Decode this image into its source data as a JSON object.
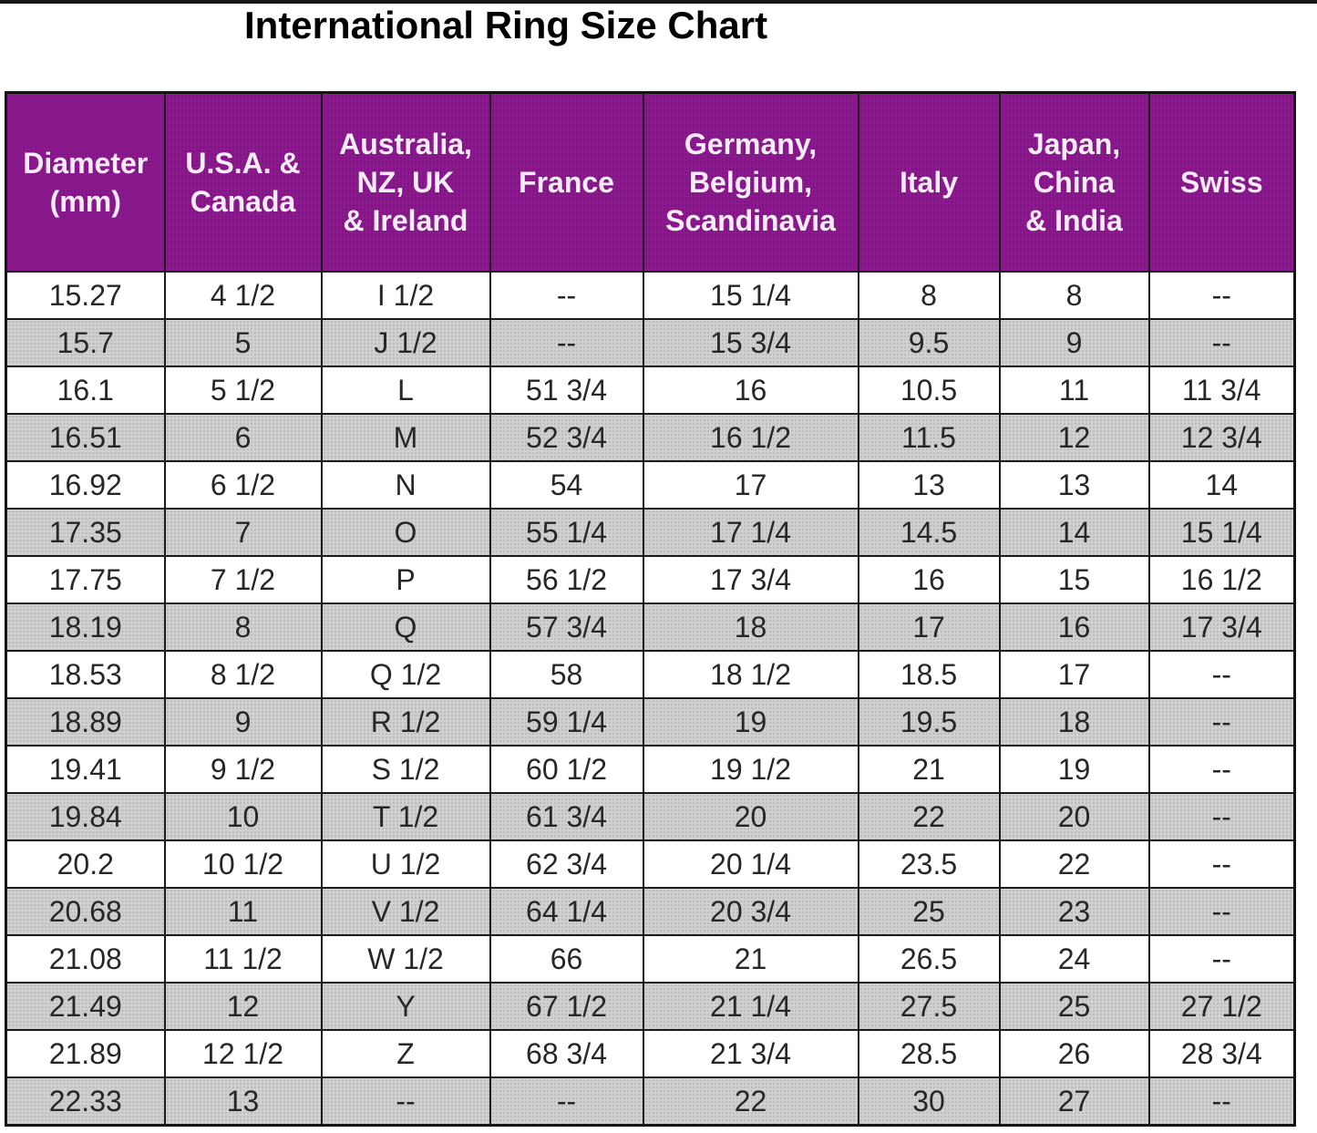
{
  "title": "International Ring Size Chart",
  "colors": {
    "header_bg": "#8B1A8F",
    "header_text": "#F7ECF7",
    "row_bg": "#FFFFFF",
    "row_alt_bg": "#CACACA",
    "border": "#1B1B1B",
    "title_text": "#000000"
  },
  "table": {
    "headers": [
      "Diameter\n(mm)",
      "U.S.A. &\nCanada",
      "Australia,\nNZ, UK\n& Ireland",
      "France",
      "Germany,\nBelgium,\nScandinavia",
      "Italy",
      "Japan,\nChina\n& India",
      "Swiss"
    ]
  },
  "chart_data": {
    "type": "table",
    "title": "International Ring Size Chart",
    "columns": [
      "Diameter (mm)",
      "U.S.A. & Canada",
      "Australia, NZ, UK & Ireland",
      "France",
      "Germany, Belgium, Scandinavia",
      "Italy",
      "Japan, China & India",
      "Swiss"
    ],
    "rows": [
      [
        "15.27",
        "4 1/2",
        "I 1/2",
        "--",
        "15 1/4",
        "8",
        "8",
        "--"
      ],
      [
        "15.7",
        "5",
        "J 1/2",
        "--",
        "15 3/4",
        "9.5",
        "9",
        "--"
      ],
      [
        "16.1",
        "5 1/2",
        "L",
        "51 3/4",
        "16",
        "10.5",
        "11",
        "11 3/4"
      ],
      [
        "16.51",
        "6",
        "M",
        "52 3/4",
        "16 1/2",
        "11.5",
        "12",
        "12 3/4"
      ],
      [
        "16.92",
        "6 1/2",
        "N",
        "54",
        "17",
        "13",
        "13",
        "14"
      ],
      [
        "17.35",
        "7",
        "O",
        "55 1/4",
        "17 1/4",
        "14.5",
        "14",
        "15 1/4"
      ],
      [
        "17.75",
        "7 1/2",
        "P",
        "56 1/2",
        "17 3/4",
        "16",
        "15",
        "16 1/2"
      ],
      [
        "18.19",
        "8",
        "Q",
        "57 3/4",
        "18",
        "17",
        "16",
        "17 3/4"
      ],
      [
        "18.53",
        "8 1/2",
        "Q 1/2",
        "58",
        "18 1/2",
        "18.5",
        "17",
        "--"
      ],
      [
        "18.89",
        "9",
        "R 1/2",
        "59 1/4",
        "19",
        "19.5",
        "18",
        "--"
      ],
      [
        "19.41",
        "9 1/2",
        "S 1/2",
        "60 1/2",
        "19 1/2",
        "21",
        "19",
        "--"
      ],
      [
        "19.84",
        "10",
        "T 1/2",
        "61 3/4",
        "20",
        "22",
        "20",
        "--"
      ],
      [
        "20.2",
        "10 1/2",
        "U 1/2",
        "62 3/4",
        "20 1/4",
        "23.5",
        "22",
        "--"
      ],
      [
        "20.68",
        "11",
        "V 1/2",
        "64 1/4",
        "20 3/4",
        "25",
        "23",
        "--"
      ],
      [
        "21.08",
        "11 1/2",
        "W 1/2",
        "66",
        "21",
        "26.5",
        "24",
        "--"
      ],
      [
        "21.49",
        "12",
        "Y",
        "67 1/2",
        "21 1/4",
        "27.5",
        "25",
        "27 1/2"
      ],
      [
        "21.89",
        "12 1/2",
        "Z",
        "68 3/4",
        "21 3/4",
        "28.5",
        "26",
        "28 3/4"
      ],
      [
        "22.33",
        "13",
        "--",
        "--",
        "22",
        "30",
        "27",
        "--"
      ]
    ]
  }
}
